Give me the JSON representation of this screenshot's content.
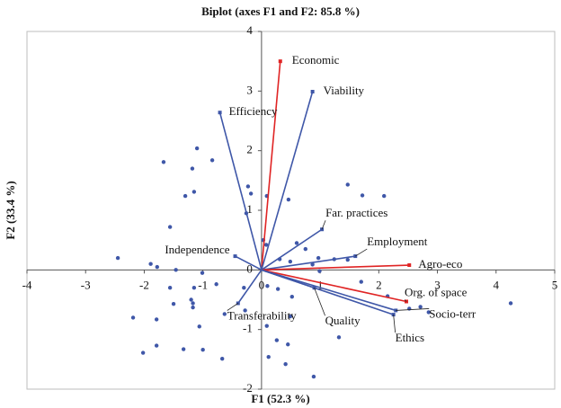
{
  "chart_data": {
    "type": "biplot",
    "title": "Biplot (axes F1 and F2: 85.8 %)",
    "x_label": "F1 (52.3 %)",
    "y_label": "F2 (33.4 %)",
    "xlim": [
      -4,
      5
    ],
    "ylim": [
      -2,
      4
    ],
    "xticks": [
      -4,
      -3,
      -2,
      -1,
      0,
      1,
      2,
      3,
      4,
      5
    ],
    "yticks": [
      -2,
      -1,
      0,
      1,
      2,
      3,
      4
    ],
    "point_color": "#3f57a8",
    "points": {
      "x": [
        -2.45,
        -1.67,
        -1.1,
        -0.84,
        -1.18,
        -1.15,
        -1.3,
        -0.23,
        -0.18,
        0.09,
        0.46,
        1.47,
        1.72,
        2.09,
        -1.56,
        -1.89,
        -1.78,
        -1.46,
        -1.56,
        -1.15,
        -1.01,
        -0.77,
        -1.2,
        -1.17,
        -1.17,
        -1.5,
        -2.19,
        -1.79,
        -1.79,
        -2.02,
        -1.33,
        -1.06,
        -1.0,
        -0.67,
        -0.63,
        -0.28,
        0.1,
        0.28,
        0.52,
        0.09,
        0.49,
        0.26,
        0.45,
        0.12,
        0.41,
        0.89,
        1.32,
        0.03,
        0.08,
        0.6,
        0.75,
        0.97,
        1.24,
        1.47,
        0.31,
        0.49,
        0.87,
        0.99,
        1.7,
        2.15,
        2.52,
        2.71,
        2.85,
        4.25,
        -0.3,
        -0.26
      ],
      "y": [
        0.2,
        1.81,
        2.04,
        1.84,
        1.7,
        1.31,
        1.24,
        1.4,
        1.28,
        1.24,
        1.18,
        1.43,
        1.25,
        1.24,
        0.72,
        0.1,
        0.05,
        0.0,
        -0.3,
        -0.3,
        -0.05,
        -0.24,
        -0.5,
        -0.56,
        -0.63,
        -0.57,
        -0.8,
        -0.83,
        -1.27,
        -1.39,
        -1.33,
        -0.95,
        -1.34,
        -1.49,
        -0.74,
        -0.68,
        -0.27,
        -0.32,
        -0.45,
        -0.94,
        -0.78,
        -1.18,
        -1.25,
        -1.46,
        -1.58,
        -1.79,
        -1.13,
        0.5,
        0.42,
        0.45,
        0.35,
        0.2,
        0.18,
        0.17,
        0.18,
        0.14,
        0.09,
        -0.02,
        -0.2,
        -0.44,
        -0.65,
        -0.62,
        -0.71,
        -0.56,
        -0.3,
        0.95
      ]
    },
    "vectors": [
      {
        "label": "Economic",
        "x": 0.32,
        "y": 3.5,
        "color": "#e02424"
      },
      {
        "label": "Viability",
        "x": 0.87,
        "y": 2.99,
        "color": "#3f57a8"
      },
      {
        "label": "Efficiency",
        "x": -0.71,
        "y": 2.64,
        "color": "#3f57a8"
      },
      {
        "label": "Far. practices",
        "x": 1.03,
        "y": 0.68,
        "color": "#3f57a8"
      },
      {
        "label": "Employment",
        "x": 1.6,
        "y": 0.23,
        "color": "#3f57a8"
      },
      {
        "label": "Agro-eco",
        "x": 2.52,
        "y": 0.08,
        "color": "#e02424"
      },
      {
        "label": "Org. of space",
        "x": 2.47,
        "y": -0.53,
        "color": "#e02424"
      },
      {
        "label": "Socio-terr",
        "x": 2.29,
        "y": -0.68,
        "color": "#3f57a8"
      },
      {
        "label": "Ethics",
        "x": 2.25,
        "y": -0.75,
        "color": "#3f57a8"
      },
      {
        "label": "Quality",
        "x": 0.9,
        "y": -0.3,
        "color": "#3f57a8"
      },
      {
        "label": "Transferability",
        "x": -0.4,
        "y": -0.56,
        "color": "#3f57a8"
      },
      {
        "label": "Independence",
        "x": -0.45,
        "y": 0.23,
        "color": "#3f57a8"
      }
    ]
  }
}
